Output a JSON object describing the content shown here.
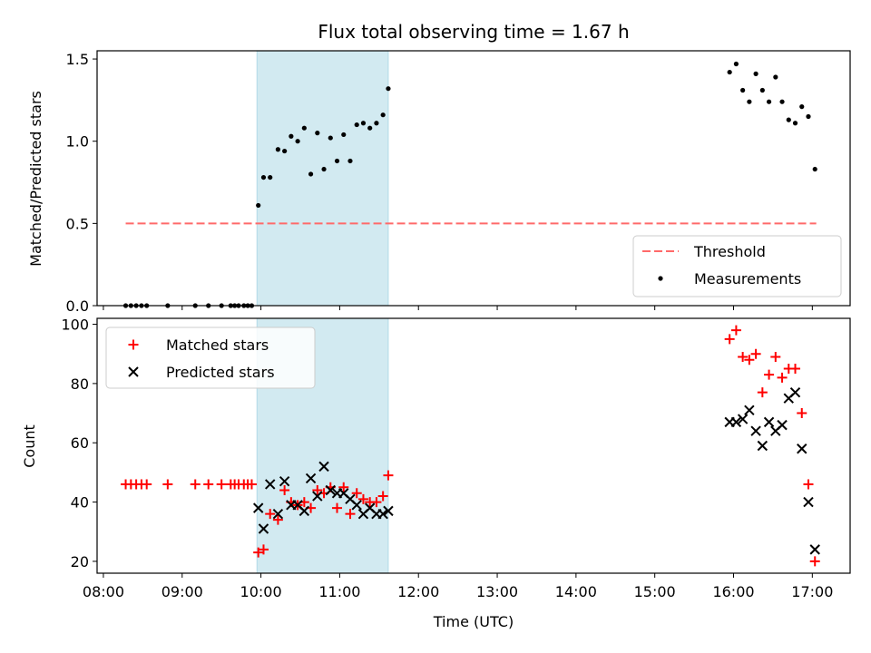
{
  "chart_data": [
    {
      "type": "scatter",
      "title": "Flux total observing time = 1.67 h",
      "xlabel": "",
      "ylabel": "Matched/Predicted stars",
      "ylim": [
        0,
        1.55
      ],
      "xlim_hours": [
        7.92,
        17.48
      ],
      "yticks": [
        {
          "v": 0,
          "label": "0.0"
        },
        {
          "v": 0.5,
          "label": "0.5"
        },
        {
          "v": 1.0,
          "label": "1.0"
        },
        {
          "v": 1.5,
          "label": "1.5"
        }
      ],
      "shaded_span": [
        "09:57",
        "11:37"
      ],
      "shade_color": "#add8e6",
      "legend_position": "lower-right",
      "threshold": {
        "name": "Threshold",
        "value": 0.5,
        "x_range": [
          "08:17",
          "17:03"
        ],
        "color": "#ff6a6a"
      },
      "series": [
        {
          "name": "Measurements",
          "color": "#000000",
          "points": [
            {
              "x": "08:17",
              "y": 0.0
            },
            {
              "x": "08:21",
              "y": 0.0
            },
            {
              "x": "08:25",
              "y": 0.0
            },
            {
              "x": "08:29",
              "y": 0.0
            },
            {
              "x": "08:33",
              "y": 0.0
            },
            {
              "x": "08:49",
              "y": 0.0
            },
            {
              "x": "09:10",
              "y": 0.0
            },
            {
              "x": "09:20",
              "y": 0.0
            },
            {
              "x": "09:30",
              "y": 0.0
            },
            {
              "x": "09:37",
              "y": 0.0
            },
            {
              "x": "09:40",
              "y": 0.0
            },
            {
              "x": "09:43",
              "y": 0.0
            },
            {
              "x": "09:47",
              "y": 0.0
            },
            {
              "x": "09:50",
              "y": 0.0
            },
            {
              "x": "09:53",
              "y": 0.0
            },
            {
              "x": "09:58",
              "y": 0.61
            },
            {
              "x": "10:02",
              "y": 0.78
            },
            {
              "x": "10:07",
              "y": 0.78
            },
            {
              "x": "10:13",
              "y": 0.95
            },
            {
              "x": "10:18",
              "y": 0.94
            },
            {
              "x": "10:23",
              "y": 1.03
            },
            {
              "x": "10:28",
              "y": 1.0
            },
            {
              "x": "10:33",
              "y": 1.08
            },
            {
              "x": "10:38",
              "y": 0.8
            },
            {
              "x": "10:43",
              "y": 1.05
            },
            {
              "x": "10:48",
              "y": 0.83
            },
            {
              "x": "10:53",
              "y": 1.02
            },
            {
              "x": "10:58",
              "y": 0.88
            },
            {
              "x": "11:03",
              "y": 1.04
            },
            {
              "x": "11:08",
              "y": 0.88
            },
            {
              "x": "11:13",
              "y": 1.1
            },
            {
              "x": "11:18",
              "y": 1.11
            },
            {
              "x": "11:23",
              "y": 1.08
            },
            {
              "x": "11:28",
              "y": 1.11
            },
            {
              "x": "11:33",
              "y": 1.16
            },
            {
              "x": "11:37",
              "y": 1.32
            },
            {
              "x": "15:57",
              "y": 1.42
            },
            {
              "x": "16:02",
              "y": 1.47
            },
            {
              "x": "16:07",
              "y": 1.31
            },
            {
              "x": "16:12",
              "y": 1.24
            },
            {
              "x": "16:17",
              "y": 1.41
            },
            {
              "x": "16:22",
              "y": 1.31
            },
            {
              "x": "16:27",
              "y": 1.24
            },
            {
              "x": "16:32",
              "y": 1.39
            },
            {
              "x": "16:37",
              "y": 1.24
            },
            {
              "x": "16:42",
              "y": 1.13
            },
            {
              "x": "16:47",
              "y": 1.11
            },
            {
              "x": "16:52",
              "y": 1.21
            },
            {
              "x": "16:57",
              "y": 1.15
            },
            {
              "x": "17:02",
              "y": 0.83
            }
          ]
        }
      ]
    },
    {
      "type": "scatter",
      "title": "",
      "xlabel": "Time (UTC)",
      "ylabel": "Count",
      "ylim": [
        16,
        102
      ],
      "xlim_hours": [
        7.92,
        17.48
      ],
      "yticks": [
        {
          "v": 20,
          "label": "20"
        },
        {
          "v": 40,
          "label": "40"
        },
        {
          "v": 60,
          "label": "60"
        },
        {
          "v": 80,
          "label": "80"
        },
        {
          "v": 100,
          "label": "100"
        }
      ],
      "xticks": [
        "08:00",
        "09:00",
        "10:00",
        "11:00",
        "12:00",
        "13:00",
        "14:00",
        "15:00",
        "16:00",
        "17:00"
      ],
      "shaded_span": [
        "09:57",
        "11:37"
      ],
      "shade_color": "#add8e6",
      "legend_position": "upper-left",
      "series": [
        {
          "name": "Matched stars",
          "marker": "plus",
          "color": "#ff0000",
          "points": [
            {
              "x": "08:17",
              "y": 46
            },
            {
              "x": "08:21",
              "y": 46
            },
            {
              "x": "08:25",
              "y": 46
            },
            {
              "x": "08:29",
              "y": 46
            },
            {
              "x": "08:33",
              "y": 46
            },
            {
              "x": "08:49",
              "y": 46
            },
            {
              "x": "09:10",
              "y": 46
            },
            {
              "x": "09:20",
              "y": 46
            },
            {
              "x": "09:30",
              "y": 46
            },
            {
              "x": "09:37",
              "y": 46
            },
            {
              "x": "09:40",
              "y": 46
            },
            {
              "x": "09:43",
              "y": 46
            },
            {
              "x": "09:47",
              "y": 46
            },
            {
              "x": "09:50",
              "y": 46
            },
            {
              "x": "09:53",
              "y": 46
            },
            {
              "x": "09:58",
              "y": 23
            },
            {
              "x": "10:02",
              "y": 24
            },
            {
              "x": "10:07",
              "y": 36
            },
            {
              "x": "10:13",
              "y": 34
            },
            {
              "x": "10:18",
              "y": 44
            },
            {
              "x": "10:23",
              "y": 40
            },
            {
              "x": "10:28",
              "y": 39
            },
            {
              "x": "10:33",
              "y": 40
            },
            {
              "x": "10:38",
              "y": 38
            },
            {
              "x": "10:43",
              "y": 44
            },
            {
              "x": "10:48",
              "y": 43
            },
            {
              "x": "10:53",
              "y": 45
            },
            {
              "x": "10:58",
              "y": 38
            },
            {
              "x": "11:03",
              "y": 45
            },
            {
              "x": "11:08",
              "y": 36
            },
            {
              "x": "11:13",
              "y": 43
            },
            {
              "x": "11:18",
              "y": 41
            },
            {
              "x": "11:23",
              "y": 40
            },
            {
              "x": "11:28",
              "y": 40
            },
            {
              "x": "11:33",
              "y": 42
            },
            {
              "x": "11:37",
              "y": 49
            },
            {
              "x": "15:57",
              "y": 95
            },
            {
              "x": "16:02",
              "y": 98
            },
            {
              "x": "16:07",
              "y": 89
            },
            {
              "x": "16:12",
              "y": 88
            },
            {
              "x": "16:17",
              "y": 90
            },
            {
              "x": "16:22",
              "y": 77
            },
            {
              "x": "16:27",
              "y": 83
            },
            {
              "x": "16:32",
              "y": 89
            },
            {
              "x": "16:37",
              "y": 82
            },
            {
              "x": "16:42",
              "y": 85
            },
            {
              "x": "16:47",
              "y": 85
            },
            {
              "x": "16:52",
              "y": 70
            },
            {
              "x": "16:57",
              "y": 46
            },
            {
              "x": "17:02",
              "y": 20
            }
          ]
        },
        {
          "name": "Predicted stars",
          "marker": "x",
          "color": "#000000",
          "points": [
            {
              "x": "09:58",
              "y": 38
            },
            {
              "x": "10:02",
              "y": 31
            },
            {
              "x": "10:07",
              "y": 46
            },
            {
              "x": "10:13",
              "y": 36
            },
            {
              "x": "10:18",
              "y": 47
            },
            {
              "x": "10:23",
              "y": 39
            },
            {
              "x": "10:28",
              "y": 39
            },
            {
              "x": "10:33",
              "y": 37
            },
            {
              "x": "10:38",
              "y": 48
            },
            {
              "x": "10:43",
              "y": 42
            },
            {
              "x": "10:48",
              "y": 52
            },
            {
              "x": "10:53",
              "y": 44
            },
            {
              "x": "10:58",
              "y": 43
            },
            {
              "x": "11:03",
              "y": 43
            },
            {
              "x": "11:08",
              "y": 41
            },
            {
              "x": "11:13",
              "y": 39
            },
            {
              "x": "11:18",
              "y": 36
            },
            {
              "x": "11:23",
              "y": 38
            },
            {
              "x": "11:28",
              "y": 36
            },
            {
              "x": "11:33",
              "y": 36
            },
            {
              "x": "11:37",
              "y": 37
            },
            {
              "x": "15:57",
              "y": 67
            },
            {
              "x": "16:02",
              "y": 67
            },
            {
              "x": "16:07",
              "y": 68
            },
            {
              "x": "16:12",
              "y": 71
            },
            {
              "x": "16:17",
              "y": 64
            },
            {
              "x": "16:22",
              "y": 59
            },
            {
              "x": "16:27",
              "y": 67
            },
            {
              "x": "16:32",
              "y": 64
            },
            {
              "x": "16:37",
              "y": 66
            },
            {
              "x": "16:42",
              "y": 75
            },
            {
              "x": "16:47",
              "y": 77
            },
            {
              "x": "16:52",
              "y": 58
            },
            {
              "x": "16:57",
              "y": 40
            },
            {
              "x": "17:02",
              "y": 24
            }
          ]
        }
      ]
    }
  ]
}
